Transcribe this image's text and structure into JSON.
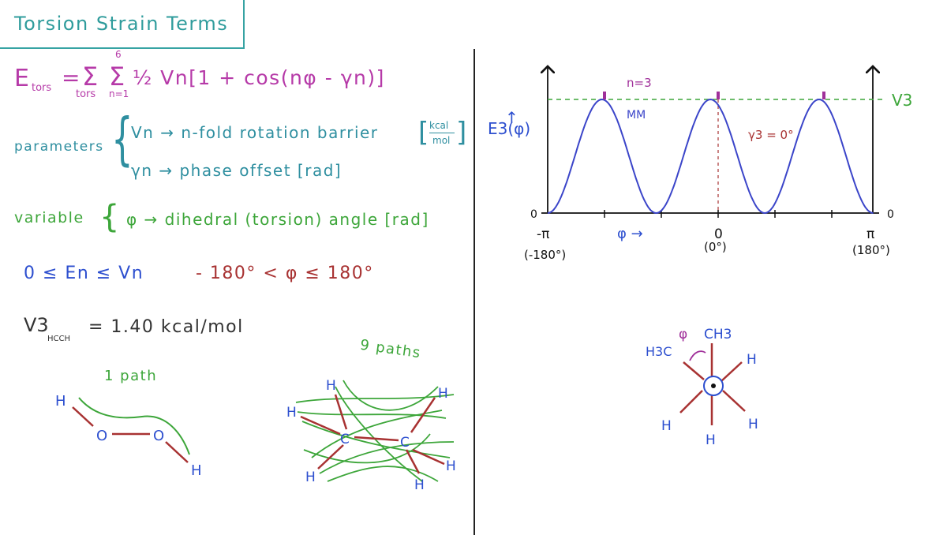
{
  "title": "Torsion Strain Terms",
  "equation": {
    "lhs": "E",
    "lhs_sub": "tors",
    "sum1_sub": "tors",
    "sum2_sup": "6",
    "sum2_sub": "n=1",
    "body": "½ Vn[1 + cos(nφ - γn)]"
  },
  "parameters": {
    "label": "parameters",
    "vn": "Vn → n-fold rotation barrier",
    "vn_unit_top": "kcal",
    "vn_unit_bottom": "mol",
    "gn": "γn → phase offset [rad]"
  },
  "variable": {
    "label": "variable",
    "text": "φ → dihedral (torsion) angle [rad]"
  },
  "energy_range": "0 ≤ En ≤ Vn",
  "angle_range": "- 180° < φ ≤ 180°",
  "v3": {
    "lhs": "V3",
    "sub": "HCCH",
    "rhs": "= 1.40 kcal/mol"
  },
  "one_path": "1 path",
  "nine_paths": "9 paths",
  "plot": {
    "ylabel": "E3(φ)",
    "xlabel": "φ →",
    "n_label": "n=3",
    "mm_label": "MM",
    "gamma_label": "γ3 = 0°",
    "v3_label": "V3",
    "zero_left": "0",
    "zero_right": "0",
    "ticks": [
      {
        "label": "-π",
        "sub": "(-180°)"
      },
      {
        "label": "0",
        "sub": "(0°)"
      },
      {
        "label": "π",
        "sub": "(180°)"
      }
    ]
  },
  "chart_data": {
    "type": "line",
    "title": "",
    "xlabel": "φ →",
    "ylabel": "E3(φ)",
    "function": "E3(φ) = ½ V3 [1 + cos(3φ - γ3)]",
    "xlim": [
      -180,
      180
    ],
    "ylim": [
      0,
      1
    ],
    "series": [
      {
        "x": [
          -180,
          -120,
          -60,
          0,
          60,
          120,
          180
        ],
        "values": [
          0,
          1,
          0,
          1,
          0,
          1,
          0
        ]
      }
    ]
  },
  "newman": {
    "phi": "φ",
    "ch3": "CH3",
    "h3c": "H3C",
    "h": "H"
  },
  "molecule_labels": {
    "h": "H",
    "o": "O",
    "c": "C"
  }
}
